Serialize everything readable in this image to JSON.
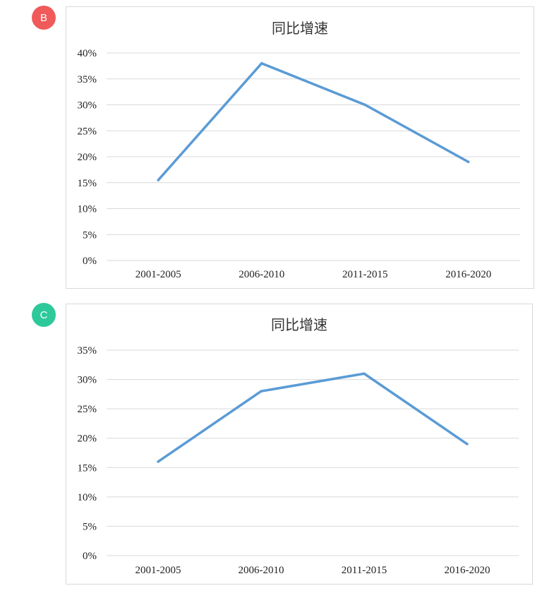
{
  "badges": {
    "b": {
      "label": "B",
      "color": "#f05a5a"
    },
    "c": {
      "label": "C",
      "color": "#2ec99a"
    }
  },
  "chart_data": [
    {
      "type": "line",
      "title": "同比增速",
      "categories": [
        "2001-2005",
        "2006-2010",
        "2011-2015",
        "2016-2020"
      ],
      "values": [
        15.5,
        38,
        30,
        19
      ],
      "ylim": [
        0,
        40
      ],
      "y_ticks": [
        "0%",
        "5%",
        "10%",
        "15%",
        "20%",
        "25%",
        "30%",
        "35%",
        "40%"
      ],
      "grid": true,
      "line_color": "#5b9bd5"
    },
    {
      "type": "line",
      "title": "同比增速",
      "categories": [
        "2001-2005",
        "2006-2010",
        "2011-2015",
        "2016-2020"
      ],
      "values": [
        16,
        28,
        31,
        19
      ],
      "ylim": [
        0,
        35
      ],
      "y_ticks": [
        "0%",
        "5%",
        "10%",
        "15%",
        "20%",
        "25%",
        "30%",
        "35%"
      ],
      "grid": true,
      "line_color": "#5b9bd5"
    }
  ]
}
